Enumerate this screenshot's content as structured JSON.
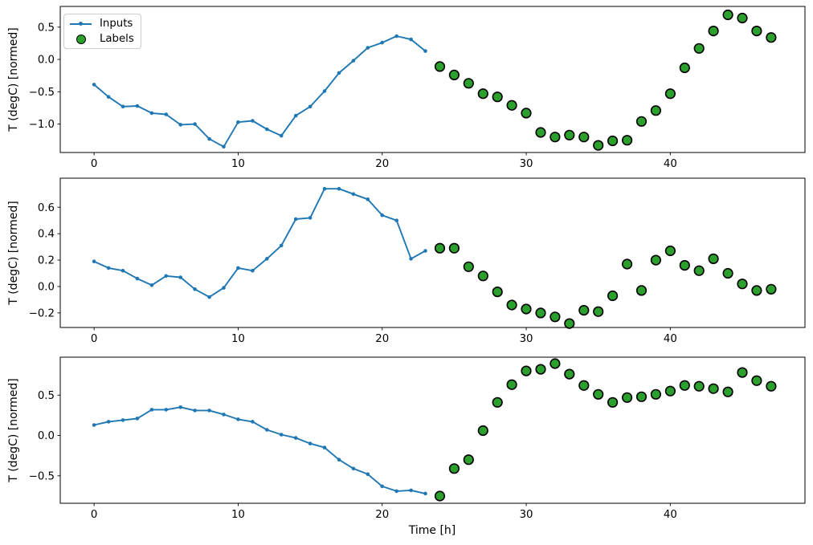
{
  "figure": {
    "kind": "matplotlib-style-figure",
    "background": "#ffffff",
    "num_subplots": 3
  },
  "legend": {
    "position": "upper-left-of-first-subplot",
    "items": [
      {
        "label": "Inputs",
        "marker": "line-with-dot",
        "color": "#1f77b4"
      },
      {
        "label": "Labels",
        "marker": "filled-circle",
        "color": "#2ca02c",
        "edge_color": "#000000"
      }
    ]
  },
  "chart_data": [
    {
      "type": "line",
      "title": "",
      "xlabel": "",
      "ylabel": "T (degC) [normed]",
      "grid": false,
      "legend_visible": true,
      "xlim": [
        -2.35,
        49.35
      ],
      "ylim": [
        -1.44,
        0.82
      ],
      "xticks": [
        0,
        10,
        20,
        30,
        40
      ],
      "xtick_labels": [
        "0",
        "10",
        "20",
        "30",
        "40"
      ],
      "yticks": [
        0.5,
        0.0,
        -0.5,
        -1.0
      ],
      "ytick_labels": [
        "0.5",
        "0.0",
        "−0.5",
        "−1.0"
      ],
      "series": [
        {
          "name": "Inputs",
          "style": "line-markers",
          "color": "#1f77b4",
          "x": [
            0,
            1,
            2,
            3,
            4,
            5,
            6,
            7,
            8,
            9,
            10,
            11,
            12,
            13,
            14,
            15,
            16,
            17,
            18,
            19,
            20,
            21,
            22,
            23
          ],
          "values": [
            -0.39,
            -0.58,
            -0.73,
            -0.72,
            -0.83,
            -0.85,
            -1.01,
            -1.0,
            -1.23,
            -1.35,
            -0.97,
            -0.95,
            -1.08,
            -1.18,
            -0.87,
            -0.73,
            -0.49,
            -0.21,
            -0.02,
            0.18,
            0.26,
            0.36,
            0.31,
            0.13
          ]
        },
        {
          "name": "Labels",
          "style": "scatter",
          "color": "#2ca02c",
          "edge_color": "#000000",
          "x": [
            24,
            25,
            26,
            27,
            28,
            29,
            30,
            31,
            32,
            33,
            34,
            35,
            36,
            37,
            38,
            39,
            40,
            41,
            42,
            43,
            44,
            45,
            46,
            47
          ],
          "values": [
            -0.11,
            -0.24,
            -0.37,
            -0.53,
            -0.58,
            -0.71,
            -0.83,
            -1.13,
            -1.2,
            -1.17,
            -1.2,
            -1.33,
            -1.26,
            -1.25,
            -0.96,
            -0.79,
            -0.53,
            -0.13,
            0.17,
            0.44,
            0.69,
            0.64,
            0.44,
            0.34
          ]
        }
      ]
    },
    {
      "type": "line",
      "title": "",
      "xlabel": "",
      "ylabel": "T (degC) [normed]",
      "grid": false,
      "legend_visible": false,
      "xlim": [
        -2.35,
        49.35
      ],
      "ylim": [
        -0.31,
        0.82
      ],
      "xticks": [
        0,
        10,
        20,
        30,
        40
      ],
      "xtick_labels": [
        "0",
        "10",
        "20",
        "30",
        "40"
      ],
      "yticks": [
        0.6,
        0.4,
        0.2,
        0.0,
        -0.2
      ],
      "ytick_labels": [
        "0.6",
        "0.4",
        "0.2",
        "0.0",
        "−0.2"
      ],
      "series": [
        {
          "name": "Inputs",
          "style": "line-markers",
          "color": "#1f77b4",
          "x": [
            0,
            1,
            2,
            3,
            4,
            5,
            6,
            7,
            8,
            9,
            10,
            11,
            12,
            13,
            14,
            15,
            16,
            17,
            18,
            19,
            20,
            21,
            22,
            23
          ],
          "values": [
            0.19,
            0.14,
            0.12,
            0.06,
            0.01,
            0.08,
            0.07,
            -0.02,
            -0.08,
            -0.01,
            0.14,
            0.12,
            0.21,
            0.31,
            0.51,
            0.52,
            0.74,
            0.74,
            0.7,
            0.66,
            0.54,
            0.5,
            0.21,
            0.27
          ]
        },
        {
          "name": "Labels",
          "style": "scatter",
          "color": "#2ca02c",
          "edge_color": "#000000",
          "x": [
            24,
            25,
            26,
            27,
            28,
            29,
            30,
            31,
            32,
            33,
            34,
            35,
            36,
            37,
            38,
            39,
            40,
            41,
            42,
            43,
            44,
            45,
            46,
            47
          ],
          "values": [
            0.29,
            0.29,
            0.15,
            0.08,
            -0.04,
            -0.14,
            -0.17,
            -0.2,
            -0.23,
            -0.28,
            -0.18,
            -0.19,
            -0.07,
            0.17,
            -0.03,
            0.2,
            0.27,
            0.16,
            0.12,
            0.21,
            0.1,
            0.02,
            -0.03,
            -0.02
          ]
        }
      ]
    },
    {
      "type": "line",
      "title": "",
      "xlabel": "Time [h]",
      "ylabel": "T (degC) [normed]",
      "grid": false,
      "legend_visible": false,
      "xlim": [
        -2.35,
        49.35
      ],
      "ylim": [
        -0.84,
        0.97
      ],
      "xticks": [
        0,
        10,
        20,
        30,
        40
      ],
      "xtick_labels": [
        "0",
        "10",
        "20",
        "30",
        "40"
      ],
      "yticks": [
        0.5,
        0.0,
        -0.5
      ],
      "ytick_labels": [
        "0.5",
        "0.0",
        "−0.5"
      ],
      "series": [
        {
          "name": "Inputs",
          "style": "line-markers",
          "color": "#1f77b4",
          "x": [
            0,
            1,
            2,
            3,
            4,
            5,
            6,
            7,
            8,
            9,
            10,
            11,
            12,
            13,
            14,
            15,
            16,
            17,
            18,
            19,
            20,
            21,
            22,
            23
          ],
          "values": [
            0.13,
            0.17,
            0.19,
            0.21,
            0.32,
            0.32,
            0.35,
            0.31,
            0.31,
            0.26,
            0.2,
            0.17,
            0.07,
            0.01,
            -0.03,
            -0.1,
            -0.15,
            -0.3,
            -0.41,
            -0.48,
            -0.63,
            -0.69,
            -0.68,
            -0.72
          ]
        },
        {
          "name": "Labels",
          "style": "scatter",
          "color": "#2ca02c",
          "edge_color": "#000000",
          "x": [
            24,
            25,
            26,
            27,
            28,
            29,
            30,
            31,
            32,
            33,
            34,
            35,
            36,
            37,
            38,
            39,
            40,
            41,
            42,
            43,
            44,
            45,
            46,
            47
          ],
          "values": [
            -0.75,
            -0.41,
            -0.3,
            0.06,
            0.41,
            0.63,
            0.8,
            0.82,
            0.89,
            0.76,
            0.62,
            0.51,
            0.41,
            0.47,
            0.48,
            0.51,
            0.55,
            0.62,
            0.61,
            0.58,
            0.54,
            0.78,
            0.68,
            0.61
          ]
        }
      ]
    }
  ]
}
